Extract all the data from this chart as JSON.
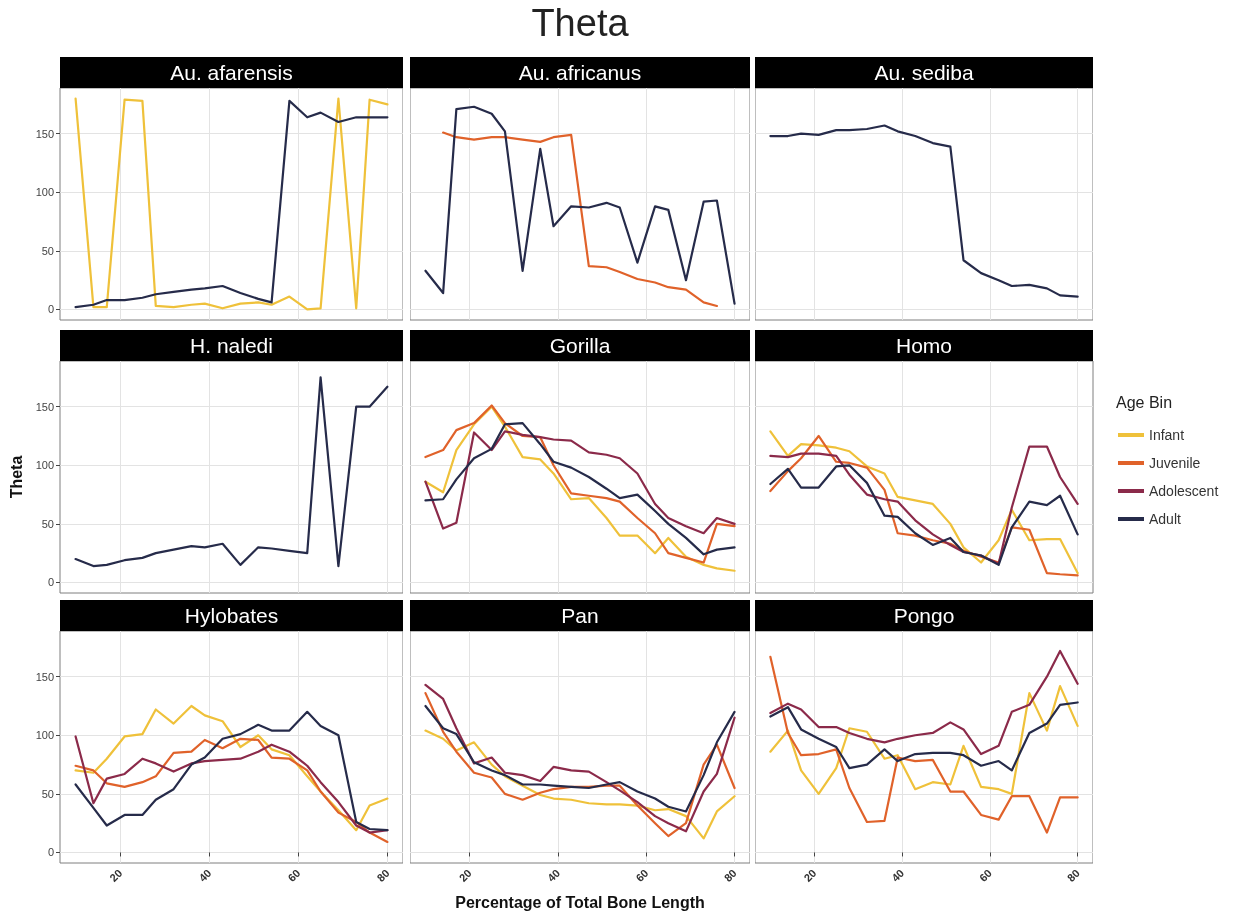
{
  "chart_data": [
    {
      "type": "line",
      "title": "Au. afarensis",
      "x": [
        10,
        14,
        17,
        21,
        25,
        28,
        32,
        36,
        39,
        43,
        47,
        51,
        54,
        58,
        62,
        65,
        69,
        73,
        76,
        80
      ],
      "xlim": [
        6.5,
        83.5
      ],
      "xticks": [
        20,
        40,
        60,
        80
      ],
      "ylim": [
        -9,
        189
      ],
      "yticks": [
        0,
        50,
        100,
        150
      ],
      "grid": true,
      "tick_labels": "y",
      "series": [
        {
          "color": "#efc13a",
          "values": [
            180,
            2,
            2,
            179,
            178,
            3,
            2,
            4,
            5,
            1,
            5,
            6,
            4,
            11,
            0,
            1,
            180,
            1,
            179,
            175
          ]
        },
        {
          "color": "#262b4a",
          "values": [
            2,
            4,
            8,
            8,
            10,
            13,
            15,
            17,
            18,
            20,
            14,
            9,
            6,
            178,
            164,
            168,
            160,
            164,
            164,
            164
          ]
        }
      ]
    },
    {
      "type": "line",
      "title": "Au. africanus",
      "annotations": [
        "Theta"
      ],
      "x": [
        10,
        14,
        17,
        21,
        25,
        28,
        32,
        36,
        39,
        43,
        47,
        51,
        54,
        58,
        62,
        65,
        69,
        73,
        76,
        80
      ],
      "xlim": [
        6.5,
        83.5
      ],
      "xticks": [
        20,
        40,
        60,
        80
      ],
      "ylim": [
        -9,
        189
      ],
      "yticks": [
        0,
        50,
        100,
        150
      ],
      "grid": true,
      "tick_labels": false,
      "series": [
        {
          "color": "#e0622a",
          "values": [
            null,
            151,
            147,
            145,
            147,
            147,
            145,
            143,
            147,
            149,
            37,
            36,
            32,
            26,
            23,
            19,
            17,
            6,
            3,
            null
          ]
        },
        {
          "color": "#262b4a",
          "values": [
            33,
            14,
            171,
            173,
            167,
            152,
            33,
            137,
            71,
            88,
            87,
            91,
            87,
            40,
            88,
            85,
            25,
            92,
            93,
            5
          ]
        }
      ]
    },
    {
      "type": "line",
      "title": "Au. sediba",
      "x": [
        10,
        14,
        17,
        21,
        25,
        28,
        32,
        36,
        39,
        43,
        47,
        51,
        54,
        58,
        62,
        65,
        69,
        73,
        76,
        80
      ],
      "xlim": [
        6.5,
        83.5
      ],
      "xticks": [
        20,
        40,
        60,
        80
      ],
      "ylim": [
        -9,
        189
      ],
      "yticks": [
        0,
        50,
        100,
        150
      ],
      "grid": true,
      "tick_labels": false,
      "series": [
        {
          "color": "#262b4a",
          "values": [
            148,
            148,
            150,
            149,
            153,
            153,
            154,
            157,
            152,
            148,
            142,
            139,
            42,
            31,
            25,
            20,
            21,
            18,
            12,
            11
          ]
        }
      ]
    },
    {
      "type": "line",
      "title": "H. naledi",
      "ylabel": "Theta",
      "x": [
        10,
        14,
        17,
        21,
        25,
        28,
        32,
        36,
        39,
        43,
        47,
        51,
        54,
        58,
        62,
        65,
        69,
        73,
        76,
        80
      ],
      "xlim": [
        6.5,
        83.5
      ],
      "xticks": [
        20,
        40,
        60,
        80
      ],
      "ylim": [
        -9,
        189
      ],
      "yticks": [
        0,
        50,
        100,
        150
      ],
      "grid": true,
      "tick_labels": "y",
      "series": [
        {
          "color": "#262b4a",
          "values": [
            20,
            14,
            15,
            19,
            21,
            25,
            28,
            31,
            30,
            33,
            15,
            30,
            29,
            27,
            25,
            175,
            14,
            150,
            150,
            167
          ]
        }
      ]
    },
    {
      "type": "line",
      "title": "Gorilla",
      "x": [
        10,
        14,
        17,
        21,
        25,
        28,
        32,
        36,
        39,
        43,
        47,
        51,
        54,
        58,
        62,
        65,
        69,
        73,
        76,
        80
      ],
      "xlim": [
        6.5,
        83.5
      ],
      "xticks": [
        20,
        40,
        60,
        80
      ],
      "ylim": [
        -9,
        189
      ],
      "yticks": [
        0,
        50,
        100,
        150
      ],
      "grid": true,
      "tick_labels": false,
      "series": [
        {
          "color": "#efc13a",
          "values": [
            86,
            77,
            113,
            135,
            150,
            133,
            107,
            105,
            93,
            71,
            72,
            55,
            40,
            40,
            25,
            38,
            22,
            15,
            12,
            10
          ]
        },
        {
          "color": "#e0622a",
          "values": [
            107,
            113,
            130,
            136,
            151,
            136,
            125,
            124,
            100,
            76,
            74,
            72,
            69,
            55,
            42,
            25,
            21,
            17,
            50,
            48
          ]
        },
        {
          "color": "#8b2a4a",
          "values": [
            86,
            46,
            51,
            128,
            113,
            129,
            126,
            124,
            122,
            121,
            111,
            109,
            106,
            93,
            67,
            55,
            48,
            42,
            55,
            50
          ]
        },
        {
          "color": "#262b4a",
          "values": [
            70,
            71,
            88,
            106,
            114,
            135,
            136,
            118,
            103,
            98,
            90,
            80,
            72,
            75,
            61,
            50,
            38,
            24,
            28,
            30
          ]
        }
      ]
    },
    {
      "type": "line",
      "title": "Homo",
      "legend": "right",
      "legend_title": "Age Bin",
      "x": [
        10,
        14,
        17,
        21,
        25,
        28,
        32,
        36,
        39,
        43,
        47,
        51,
        54,
        58,
        62,
        65,
        69,
        73,
        76,
        80
      ],
      "xlim": [
        6.5,
        83.5
      ],
      "xticks": [
        20,
        40,
        60,
        80
      ],
      "ylim": [
        -9,
        189
      ],
      "yticks": [
        0,
        50,
        100,
        150
      ],
      "grid": true,
      "tick_labels": false,
      "series": [
        {
          "name": "Infant",
          "color": "#efc13a",
          "values": [
            129,
            108,
            118,
            117,
            115,
            112,
            99,
            93,
            73,
            70,
            67,
            50,
            30,
            17,
            36,
            62,
            36,
            37,
            37,
            8
          ]
        },
        {
          "name": "Juvenile",
          "color": "#e0622a",
          "values": [
            78,
            95,
            106,
            125,
            103,
            102,
            98,
            79,
            42,
            40,
            36,
            33,
            27,
            22,
            17,
            47,
            45,
            8,
            7,
            6
          ]
        },
        {
          "name": "Adolescent",
          "color": "#8b2a4a",
          "values": [
            108,
            107,
            110,
            110,
            108,
            92,
            75,
            71,
            69,
            53,
            41,
            32,
            26,
            23,
            16,
            64,
            116,
            116,
            90,
            67
          ]
        },
        {
          "name": "Adult",
          "color": "#262b4a",
          "values": [
            84,
            97,
            81,
            81,
            99,
            100,
            85,
            57,
            56,
            42,
            32,
            38,
            26,
            23,
            15,
            47,
            69,
            66,
            74,
            41
          ]
        }
      ]
    },
    {
      "type": "line",
      "title": "Hylobates",
      "x": [
        10,
        14,
        17,
        21,
        25,
        28,
        32,
        36,
        39,
        43,
        47,
        51,
        54,
        58,
        62,
        65,
        69,
        73,
        76,
        80
      ],
      "xlim": [
        6.5,
        83.5
      ],
      "xticks": [
        20,
        40,
        60,
        80
      ],
      "ylim": [
        -9,
        189
      ],
      "yticks": [
        0,
        50,
        100,
        150
      ],
      "grid": true,
      "series": [
        {
          "color": "#efc13a",
          "values": [
            70,
            68,
            80,
            99,
            101,
            122,
            110,
            125,
            117,
            112,
            90,
            100,
            88,
            83,
            65,
            52,
            36,
            19,
            40,
            46
          ]
        },
        {
          "color": "#e0622a",
          "values": [
            74,
            70,
            59,
            56,
            60,
            65,
            85,
            86,
            96,
            89,
            97,
            96,
            81,
            80,
            70,
            52,
            34,
            26,
            17,
            9
          ]
        },
        {
          "color": "#8b2a4a",
          "values": [
            99,
            42,
            63,
            67,
            80,
            76,
            69,
            76,
            78,
            79,
            80,
            86,
            92,
            86,
            74,
            60,
            43,
            23,
            17,
            19
          ]
        },
        {
          "color": "#262b4a",
          "values": [
            58,
            38,
            23,
            32,
            32,
            45,
            54,
            75,
            81,
            97,
            101,
            109,
            104,
            104,
            120,
            108,
            100,
            26,
            20,
            19
          ]
        }
      ]
    },
    {
      "type": "line",
      "title": "Pan",
      "xlabel": "Percentage of Total Bone Length",
      "x": [
        10,
        14,
        17,
        21,
        25,
        28,
        32,
        36,
        39,
        43,
        47,
        51,
        54,
        58,
        62,
        65,
        69,
        73,
        76,
        80
      ],
      "xlim": [
        6.5,
        83.5
      ],
      "xticks": [
        20,
        40,
        60,
        80
      ],
      "ylim": [
        -9,
        189
      ],
      "yticks": [
        0,
        50,
        100,
        150
      ],
      "grid": true,
      "tick_labels": "x",
      "series": [
        {
          "color": "#efc13a",
          "values": [
            104,
            97,
            87,
            94,
            75,
            65,
            57,
            49,
            46,
            45,
            42,
            41,
            41,
            40,
            36,
            37,
            31,
            12,
            35,
            48
          ]
        },
        {
          "color": "#e0622a",
          "values": [
            136,
            103,
            86,
            68,
            64,
            50,
            45,
            51,
            54,
            56,
            56,
            57,
            57,
            40,
            25,
            14,
            25,
            75,
            92,
            55
          ]
        },
        {
          "color": "#8b2a4a",
          "values": [
            143,
            131,
            106,
            76,
            81,
            68,
            66,
            61,
            73,
            70,
            69,
            60,
            53,
            43,
            31,
            25,
            18,
            52,
            67,
            115
          ]
        },
        {
          "color": "#262b4a",
          "values": [
            125,
            106,
            101,
            77,
            70,
            66,
            58,
            58,
            57,
            56,
            55,
            58,
            60,
            52,
            46,
            39,
            35,
            66,
            94,
            120
          ]
        }
      ]
    },
    {
      "type": "line",
      "title": "Pongo",
      "x": [
        10,
        14,
        17,
        21,
        25,
        28,
        32,
        36,
        39,
        43,
        47,
        51,
        54,
        58,
        62,
        65,
        69,
        73,
        76,
        80
      ],
      "xlim": [
        6.5,
        83.5
      ],
      "xticks": [
        20,
        40,
        60,
        80
      ],
      "ylim": [
        -9,
        189
      ],
      "yticks": [
        0,
        50,
        100,
        150
      ],
      "grid": true,
      "tick_labels": "x",
      "series": [
        {
          "color": "#efc13a",
          "values": [
            86,
            104,
            70,
            50,
            72,
            106,
            103,
            80,
            83,
            54,
            60,
            58,
            91,
            56,
            54,
            50,
            136,
            104,
            142,
            108
          ]
        },
        {
          "color": "#e0622a",
          "values": [
            167,
            102,
            83,
            84,
            88,
            55,
            26,
            27,
            81,
            78,
            79,
            52,
            52,
            32,
            28,
            48,
            48,
            17,
            47,
            47
          ]
        },
        {
          "color": "#8b2a4a",
          "values": [
            119,
            127,
            122,
            107,
            107,
            102,
            97,
            94,
            97,
            100,
            102,
            111,
            105,
            84,
            91,
            120,
            126,
            150,
            172,
            144
          ]
        },
        {
          "color": "#262b4a",
          "values": [
            116,
            124,
            105,
            97,
            90,
            72,
            75,
            88,
            78,
            84,
            85,
            85,
            83,
            74,
            78,
            70,
            102,
            110,
            126,
            128
          ]
        }
      ]
    }
  ]
}
